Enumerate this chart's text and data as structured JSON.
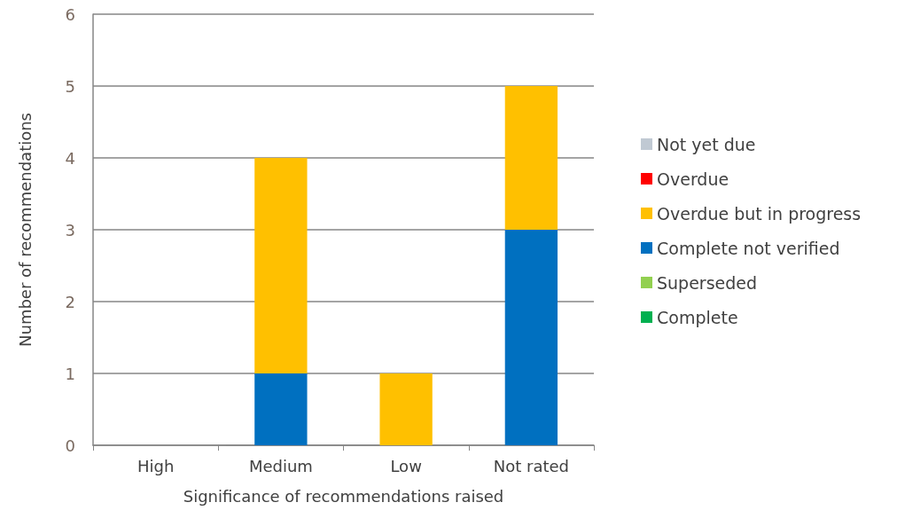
{
  "chart_data": {
    "type": "bar",
    "stacked": true,
    "xlabel": "Significance of recommendations raised",
    "ylabel": "Number of recommendations",
    "categories": [
      "High",
      "Medium",
      "Low",
      "Not rated"
    ],
    "series": [
      {
        "name": "Complete",
        "color": "#00b050",
        "values": [
          0,
          0,
          0,
          0
        ]
      },
      {
        "name": "Superseded",
        "color": "#92d050",
        "values": [
          0,
          0,
          0,
          0
        ]
      },
      {
        "name": "Complete not verified",
        "color": "#0070c0",
        "values": [
          0,
          1,
          0,
          3
        ]
      },
      {
        "name": "Overdue but in progress",
        "color": "#ffc000",
        "values": [
          0,
          3,
          1,
          2
        ]
      },
      {
        "name": "Overdue",
        "color": "#ff0000",
        "values": [
          0,
          0,
          0,
          0
        ]
      },
      {
        "name": "Not yet due",
        "color": "#c0c9d3",
        "values": [
          0,
          0,
          0,
          0
        ]
      }
    ],
    "ylim": [
      0,
      6
    ],
    "yticks": [
      0,
      1,
      2,
      3,
      4,
      5,
      6
    ],
    "grid": "y",
    "legend": "right"
  }
}
